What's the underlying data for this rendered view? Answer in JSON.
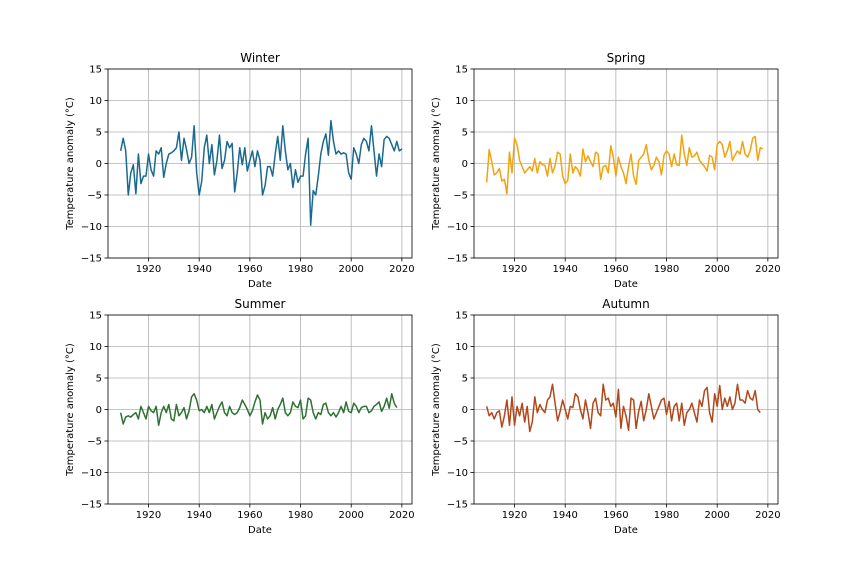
{
  "chart_data": [
    {
      "type": "line",
      "title": "Winter",
      "xlabel": "Date",
      "ylabel": "Temperature anomaly (°C)",
      "color": "#1a6990",
      "xlim": [
        1904,
        2024
      ],
      "ylim": [
        -15,
        15
      ],
      "xticks": [
        "1920",
        "1940",
        "1960",
        "1980",
        "2000",
        "2020"
      ],
      "yticks": [
        "15",
        "10",
        "5",
        "0",
        "−5",
        "−10",
        "−15"
      ],
      "grid": true,
      "x_start": 1909,
      "values": [
        2.0,
        4.0,
        2.0,
        -5.0,
        -1.5,
        -0.2,
        -4.8,
        1.5,
        -3.2,
        -2.0,
        -2.0,
        1.5,
        -1.0,
        -2.0,
        2.0,
        1.5,
        2.5,
        -2.2,
        0.0,
        1.5,
        1.7,
        2.0,
        2.5,
        5.0,
        0.5,
        4.0,
        2.2,
        0.0,
        1.0,
        6.0,
        -1.5,
        -5.0,
        -2.8,
        2.5,
        4.5,
        0.0,
        3.0,
        -1.8,
        0.5,
        4.5,
        -0.8,
        0.5,
        3.5,
        2.5,
        3.2,
        -4.5,
        -1.5,
        2.5,
        -0.2,
        2.5,
        -1.2,
        0.5,
        2.0,
        -0.5,
        2.0,
        0.5,
        -5.0,
        -3.5,
        -0.5,
        -0.5,
        -2.0,
        1.5,
        4.3,
        0.5,
        6.0,
        2.0,
        -1.0,
        0.0,
        -3.8,
        -1.0,
        -3.0,
        -2.0,
        -2.0,
        1.5,
        4.0,
        -9.8,
        -4.3,
        -5.0,
        -2.0,
        1.5,
        3.5,
        4.7,
        1.3,
        6.8,
        3.5,
        1.5,
        2.0,
        1.5,
        1.7,
        1.5,
        -1.5,
        -2.5,
        2.5,
        1.5,
        0.0,
        3.0,
        4.0,
        3.5,
        2.0,
        6.0,
        2.0,
        -2.0,
        1.5,
        -0.5,
        3.8,
        4.3,
        4.0,
        3.0,
        2.0,
        3.5,
        2.0,
        2.3
      ]
    },
    {
      "type": "line",
      "title": "Spring",
      "xlabel": "Date",
      "ylabel": "Temperature anomaly (°C)",
      "color": "#f2a30f",
      "xlim": [
        1904,
        2024
      ],
      "ylim": [
        -15,
        15
      ],
      "xticks": [
        "1920",
        "1940",
        "1960",
        "1980",
        "2000",
        "2020"
      ],
      "yticks": [
        "15",
        "10",
        "5",
        "0",
        "−5",
        "−10",
        "−15"
      ],
      "grid": true,
      "x_start": 1909,
      "values": [
        -3.0,
        2.2,
        0.3,
        -1.8,
        -1.5,
        -0.8,
        -2.8,
        -2.5,
        -4.8,
        1.8,
        -1.5,
        4.0,
        3.0,
        0.5,
        -0.5,
        -1.5,
        -1.0,
        -0.5,
        -1.2,
        0.8,
        -1.5,
        0.3,
        -0.2,
        -0.3,
        -2.0,
        0.8,
        -1.5,
        -0.3,
        1.8,
        1.5,
        -2.0,
        -3.2,
        -2.7,
        1.5,
        -1.5,
        -0.5,
        -1.0,
        -2.0,
        2.3,
        0.3,
        1.2,
        0.3,
        -0.5,
        1.8,
        1.5,
        -2.5,
        -0.5,
        -0.3,
        -1.5,
        2.8,
        1.0,
        -2.0,
        1.0,
        -0.5,
        -1.5,
        -3.2,
        -0.5,
        1.5,
        -2.0,
        -3.3,
        0.5,
        1.0,
        1.5,
        3.0,
        0.5,
        -1.0,
        -0.3,
        1.0,
        0.3,
        -1.8,
        1.3,
        2.0,
        1.5,
        -0.5,
        1.5,
        -0.2,
        -0.3,
        4.5,
        1.5,
        -0.3,
        2.5,
        1.0,
        1.2,
        1.8,
        0.5,
        0.0,
        -0.5,
        -1.2,
        1.3,
        1.0,
        -1.0,
        3.0,
        3.5,
        3.0,
        1.0,
        2.0,
        3.5,
        0.5,
        1.3,
        2.0,
        1.5,
        3.5,
        1.5,
        1.0,
        2.0,
        4.0,
        4.3,
        0.5,
        2.5,
        2.3
      ]
    },
    {
      "type": "line",
      "title": "Summer",
      "xlabel": "Date",
      "ylabel": "Temperature anomaly (°C)",
      "color": "#2d7232",
      "xlim": [
        1904,
        2024
      ],
      "ylim": [
        -15,
        15
      ],
      "xticks": [
        "1920",
        "1940",
        "1960",
        "1980",
        "2000",
        "2020"
      ],
      "yticks": [
        "15",
        "10",
        "5",
        "0",
        "−5",
        "−10",
        "−15"
      ],
      "grid": true,
      "x_start": 1909,
      "values": [
        -0.5,
        -2.3,
        -1.2,
        -1.0,
        -1.2,
        -0.8,
        -0.5,
        -1.5,
        0.5,
        -0.5,
        -1.5,
        0.5,
        -0.2,
        -0.5,
        0.5,
        -2.5,
        -0.5,
        0.5,
        -0.5,
        0.8,
        -1.5,
        -1.8,
        0.8,
        -1.0,
        -0.5,
        0.3,
        -1.5,
        -0.2,
        2.0,
        2.5,
        1.5,
        -0.2,
        0.0,
        -0.5,
        0.5,
        -0.5,
        0.8,
        -1.5,
        -0.5,
        0.5,
        1.2,
        -0.5,
        -1.0,
        0.5,
        -0.5,
        -0.8,
        -0.5,
        0.3,
        1.5,
        0.8,
        0.0,
        -1.0,
        -0.2,
        1.2,
        2.3,
        1.5,
        -2.3,
        -0.5,
        -1.5,
        -1.0,
        0.3,
        -1.5,
        0.0,
        0.8,
        1.8,
        -0.5,
        -1.0,
        -0.5,
        1.2,
        0.5,
        0.3,
        1.5,
        -1.5,
        -1.0,
        1.8,
        1.5,
        -0.5,
        -1.5,
        -0.5,
        -0.8,
        0.8,
        1.0,
        -0.5,
        -1.0,
        -0.5,
        -1.2,
        -0.5,
        0.5,
        -0.5,
        1.2,
        -0.3,
        -0.5,
        1.0,
        0.5,
        -0.5,
        0.3,
        0.5,
        0.5,
        -0.5,
        -0.2,
        0.5,
        0.8,
        1.2,
        -0.3,
        0.5,
        1.8,
        0.2,
        2.5,
        1.0,
        0.3
      ]
    },
    {
      "type": "line",
      "title": "Autumn",
      "xlabel": "Date",
      "ylabel": "Temperature anomaly (°C)",
      "color": "#b2471a",
      "xlim": [
        1904,
        2024
      ],
      "ylim": [
        -15,
        15
      ],
      "xticks": [
        "1920",
        "1940",
        "1960",
        "1980",
        "2000",
        "2020"
      ],
      "yticks": [
        "15",
        "10",
        "5",
        "0",
        "−5",
        "−10",
        "−15"
      ],
      "grid": true,
      "x_start": 1909,
      "values": [
        0.5,
        -1.0,
        -0.5,
        -1.5,
        -0.5,
        -0.2,
        -2.8,
        -1.0,
        1.5,
        -2.5,
        2.0,
        -2.5,
        0.5,
        -1.0,
        1.0,
        -2.0,
        0.5,
        -3.5,
        -2.0,
        2.0,
        -0.5,
        0.8,
        0.0,
        -0.5,
        1.5,
        2.0,
        4.0,
        1.0,
        -1.8,
        -0.3,
        1.5,
        0.0,
        -1.5,
        0.5,
        0.3,
        2.5,
        2.0,
        0.0,
        -1.5,
        1.5,
        -0.5,
        -3.0,
        1.0,
        1.8,
        -0.5,
        -1.0,
        4.0,
        1.5,
        1.8,
        0.5,
        1.0,
        -1.2,
        3.2,
        -3.0,
        0.5,
        -1.0,
        -3.3,
        1.8,
        1.5,
        -3.0,
        -0.3,
        1.3,
        -1.8,
        0.0,
        2.5,
        0.5,
        -1.5,
        -0.5,
        0.5,
        1.5,
        1.8,
        -0.8,
        1.3,
        -1.8,
        0.5,
        1.0,
        -1.8,
        1.0,
        -2.5,
        -0.5,
        0.0,
        1.0,
        -0.5,
        -2.0,
        1.5,
        0.5,
        3.0,
        3.5,
        -0.5,
        -2.0,
        2.5,
        0.5,
        3.8,
        0.0,
        1.8,
        0.5,
        2.0,
        0.0,
        1.0,
        4.0,
        1.5,
        1.5,
        1.0,
        3.0,
        1.8,
        1.5,
        3.0,
        0.0,
        -0.5
      ]
    }
  ]
}
